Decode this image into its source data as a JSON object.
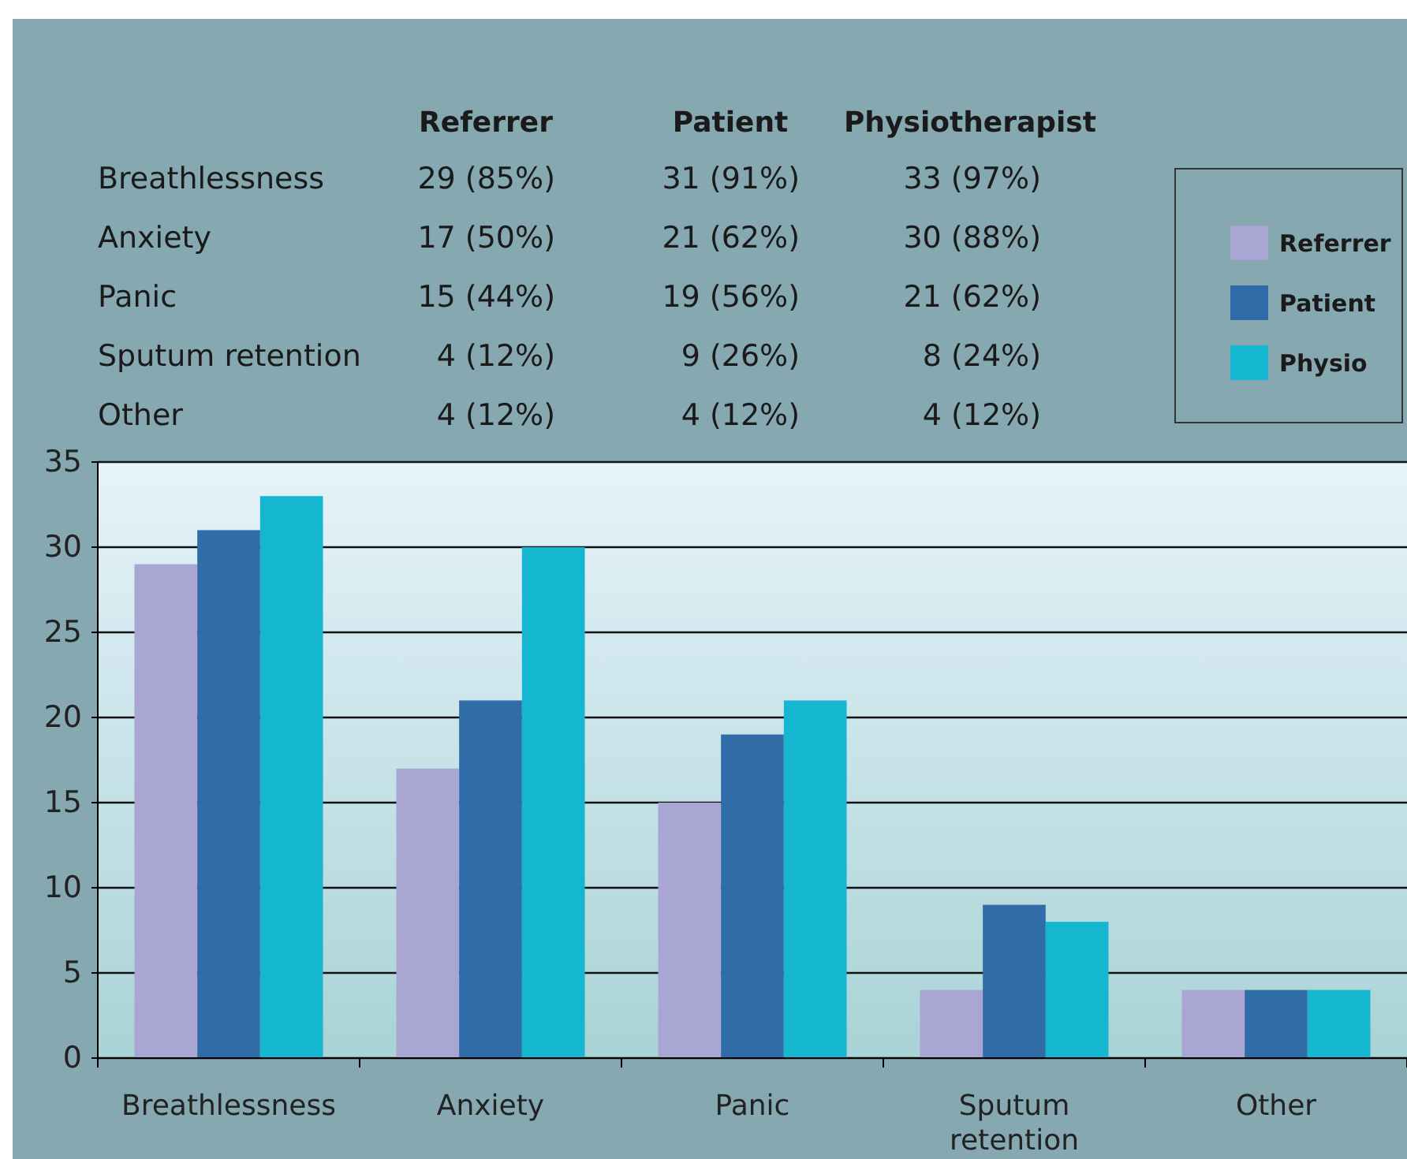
{
  "chart_data": [
    {
      "type": "other",
      "categories": [
        "Referrer",
        "Patient",
        "Physiotherapist"
      ],
      "y_categories": [
        "Breathlessness",
        "Anxiety",
        "Panic",
        "Sputum retention",
        "Other"
      ],
      "cell_labels": [
        [
          "29 (85%)",
          "31 (91%)",
          "33 (97%)"
        ],
        [
          "17 (50%)",
          "21 (62%)",
          "30 (88%)"
        ],
        [
          "15 (44%)",
          "19 (56%)",
          "21 (62%)"
        ],
        [
          "4 (12%)",
          "9 (26%)",
          "8 (24%)"
        ],
        [
          "4 (12%)",
          "4 (12%)",
          "4 (12%)"
        ]
      ]
    },
    {
      "type": "bar",
      "categories": [
        "Breathlessness",
        "Anxiety",
        "Panic",
        "Sputum retention",
        "Other"
      ],
      "series": [
        {
          "name": "Referrer",
          "color": "#a9a6d4",
          "values": [
            29,
            17,
            15,
            4,
            4
          ]
        },
        {
          "name": "Patient",
          "color": "#2f6ca8",
          "values": [
            31,
            21,
            19,
            9,
            4
          ]
        },
        {
          "name": "Physio",
          "color": "#15b6cf",
          "values": [
            33,
            30,
            21,
            8,
            4
          ]
        }
      ],
      "ylim": [
        0,
        35
      ],
      "yticks": [
        0,
        5,
        10,
        15,
        20,
        25,
        30,
        35
      ],
      "grid": "y",
      "legend": "top right"
    }
  ]
}
